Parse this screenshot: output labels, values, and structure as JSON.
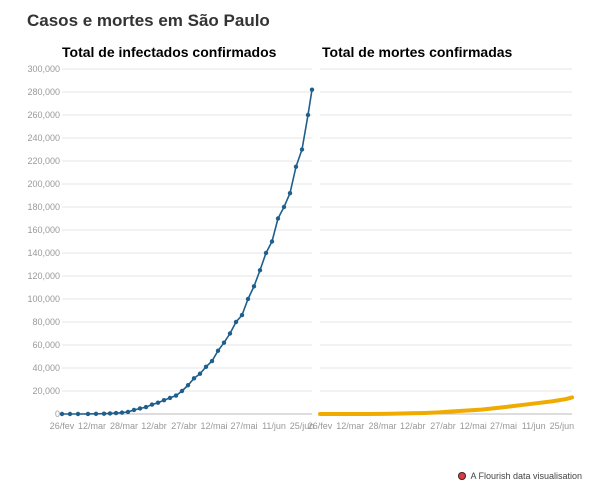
{
  "title": "Casos e mortes em São Paulo",
  "credit": "A Flourish data visualisation",
  "colors": {
    "infected": "#1e5f8c",
    "deaths": "#f0ab00",
    "grid": "#e6e6e6",
    "axis_text": "#999999"
  },
  "chart_data": [
    {
      "type": "line",
      "title": "Total de infectados confirmados",
      "xlabel": "",
      "ylabel": "",
      "ylim": [
        0,
        300000
      ],
      "yticks": [
        0,
        20000,
        40000,
        60000,
        80000,
        100000,
        120000,
        140000,
        160000,
        180000,
        200000,
        220000,
        240000,
        260000,
        280000,
        300000
      ],
      "ytick_labels": [
        "0",
        "20,000",
        "40,000",
        "60,000",
        "80,000",
        "100,000",
        "120,000",
        "140,000",
        "160,000",
        "180,000",
        "200,000",
        "220,000",
        "240,000",
        "260,000",
        "280,000",
        "300,000"
      ],
      "xticks": [
        "26/fev",
        "12/mar",
        "28/mar",
        "12/abr",
        "27/abr",
        "12/mai",
        "27/mai",
        "11/jun",
        "25/jun"
      ],
      "grid": true,
      "series": [
        {
          "name": "",
          "x": [
            "2020-02-26",
            "2020-03-01",
            "2020-03-05",
            "2020-03-10",
            "2020-03-14",
            "2020-03-18",
            "2020-03-21",
            "2020-03-24",
            "2020-03-27",
            "2020-03-30",
            "2020-04-02",
            "2020-04-05",
            "2020-04-08",
            "2020-04-11",
            "2020-04-14",
            "2020-04-17",
            "2020-04-20",
            "2020-04-23",
            "2020-04-26",
            "2020-04-29",
            "2020-05-02",
            "2020-05-05",
            "2020-05-08",
            "2020-05-11",
            "2020-05-14",
            "2020-05-17",
            "2020-05-20",
            "2020-05-23",
            "2020-05-26",
            "2020-05-29",
            "2020-06-01",
            "2020-06-04",
            "2020-06-07",
            "2020-06-10",
            "2020-06-13",
            "2020-06-16",
            "2020-06-19",
            "2020-06-22",
            "2020-06-25",
            "2020-06-28",
            "2020-06-30"
          ],
          "y": [
            1,
            2,
            6,
            30,
            140,
            300,
            450,
            800,
            1200,
            1800,
            3500,
            4800,
            6000,
            8200,
            9800,
            12000,
            14000,
            16000,
            20000,
            25000,
            31000,
            35000,
            41000,
            46000,
            55000,
            62000,
            70000,
            80000,
            86000,
            100000,
            111000,
            125000,
            140000,
            150000,
            170000,
            180000,
            192000,
            215000,
            230000,
            260000,
            282000
          ]
        }
      ]
    },
    {
      "type": "line",
      "title": "Total de mortes confirmadas",
      "xlabel": "",
      "ylabel": "",
      "ylim": [
        0,
        300000
      ],
      "xticks": [
        "26/fev",
        "12/mar",
        "28/mar",
        "12/abr",
        "27/abr",
        "12/mai",
        "27/mai",
        "11/jun",
        "25/jun"
      ],
      "grid": true,
      "series": [
        {
          "name": "",
          "x": [
            "2020-02-26",
            "2020-03-05",
            "2020-03-14",
            "2020-03-21",
            "2020-03-28",
            "2020-04-04",
            "2020-04-11",
            "2020-04-18",
            "2020-04-25",
            "2020-05-02",
            "2020-05-09",
            "2020-05-16",
            "2020-05-23",
            "2020-05-30",
            "2020-06-06",
            "2020-06-13",
            "2020-06-20",
            "2020-06-27",
            "2020-06-30"
          ],
          "y": [
            0,
            0,
            0,
            50,
            110,
            300,
            600,
            900,
            1400,
            2300,
            3000,
            3800,
            5100,
            6500,
            8000,
            9500,
            11000,
            13000,
            14400
          ]
        }
      ]
    }
  ]
}
